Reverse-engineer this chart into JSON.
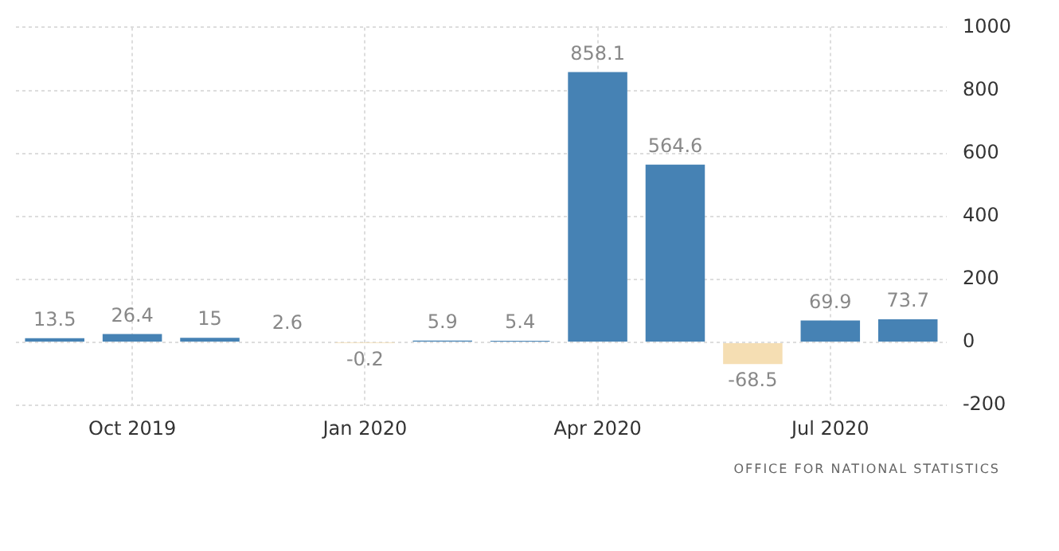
{
  "chart_data": {
    "type": "bar",
    "categories": [
      null,
      "Oct 2019",
      null,
      null,
      "Jan 2020",
      null,
      null,
      "Apr 2020",
      null,
      null,
      "Jul 2020",
      null
    ],
    "values": [
      13.5,
      26.4,
      15,
      2.6,
      -0.2,
      5.9,
      5.4,
      858.1,
      564.6,
      -68.5,
      69.9,
      73.7
    ],
    "colors": [
      "#4682b4",
      "#4682b4",
      "#4682b4",
      "#4682b4",
      "#f5deb3",
      "#4682b4",
      "#4682b4",
      "#4682b4",
      "#4682b4",
      "#f5deb3",
      "#4682b4",
      "#4682b4"
    ],
    "ylim": [
      -200,
      1000
    ],
    "yticks": [
      -200,
      0,
      200,
      400,
      600,
      800,
      1000
    ],
    "grid": true,
    "legend": false,
    "data_labels": true,
    "annotations": [
      "OFFICE FOR NATIONAL STATISTICS"
    ]
  }
}
